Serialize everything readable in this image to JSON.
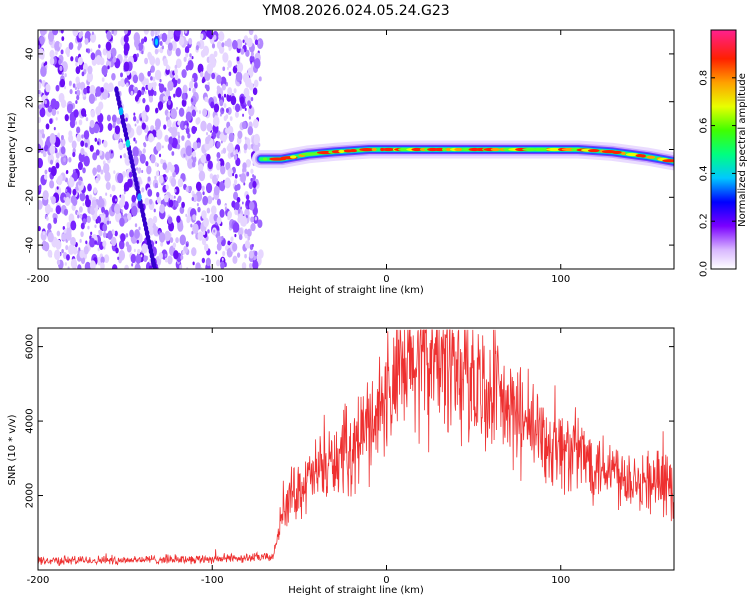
{
  "chart_data": [
    {
      "type": "heatmap",
      "title": "YM08.2026.024.05.24.G23",
      "xlabel": "Height of straight line (km)",
      "ylabel": "Frequency (Hz)",
      "xlim": [
        -200,
        165
      ],
      "ylim": [
        -50,
        50
      ],
      "xticks": [
        -200,
        -100,
        0,
        100
      ],
      "yticks": [
        -40,
        -20,
        0,
        20,
        40
      ],
      "noise_region_x": [
        -200,
        -72
      ],
      "diagonal_trace": {
        "x_start": -132,
        "y_start": 45,
        "x_end": -134,
        "y_end": -50
      },
      "diagonal_main": [
        [
          -155,
          25
        ],
        [
          -133,
          -50
        ]
      ],
      "signal_trace": [
        {
          "x": -72,
          "y": -4
        },
        {
          "x": -60,
          "y": -4
        },
        {
          "x": -45,
          "y": -2
        },
        {
          "x": -30,
          "y": -1
        },
        {
          "x": -10,
          "y": 0
        },
        {
          "x": 10,
          "y": 0
        },
        {
          "x": 40,
          "y": 0
        },
        {
          "x": 80,
          "y": 0
        },
        {
          "x": 110,
          "y": 0
        },
        {
          "x": 130,
          "y": -1
        },
        {
          "x": 150,
          "y": -3
        },
        {
          "x": 165,
          "y": -5
        }
      ],
      "colorbar": {
        "label": "Normalized spectral amplitude",
        "ticks": [
          "0.0",
          "0.2",
          "0.4",
          "0.6",
          "0.8"
        ],
        "range": [
          0,
          1
        ]
      }
    },
    {
      "type": "line",
      "xlabel": "Height of straight line (km)",
      "ylabel": "SNR (10 * v/v)",
      "xlim": [
        -200,
        165
      ],
      "ylim": [
        0,
        6500
      ],
      "xticks": [
        -200,
        -100,
        0,
        100
      ],
      "yticks": [
        2000,
        4000,
        6000
      ],
      "series": [
        {
          "name": "SNR",
          "color": "#ee3030",
          "envelope_x": [
            -200,
            -150,
            -100,
            -65,
            -60,
            -55,
            -40,
            -30,
            -20,
            -10,
            0,
            10,
            20,
            30,
            40,
            50,
            60,
            70,
            80,
            90,
            100,
            110,
            120,
            130,
            140,
            150,
            160,
            165
          ],
          "envelope_y": [
            250,
            270,
            300,
            350,
            1500,
            2000,
            2600,
            2900,
            3300,
            3900,
            4700,
            5200,
            5600,
            5700,
            5500,
            5100,
            4700,
            4300,
            3900,
            3500,
            3300,
            3100,
            2900,
            2700,
            2500,
            2400,
            2300,
            2100
          ]
        }
      ]
    }
  ]
}
